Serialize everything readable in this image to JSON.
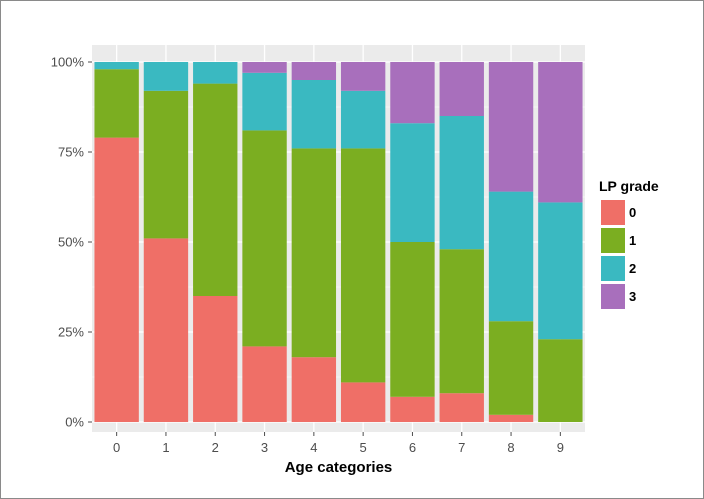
{
  "chart_data": {
    "type": "bar",
    "stacked": "percent",
    "categories": [
      "0",
      "1",
      "2",
      "3",
      "4",
      "5",
      "6",
      "7",
      "8",
      "9"
    ],
    "series": [
      {
        "name": "0",
        "color": "#EF6F67",
        "values": [
          79,
          51,
          35,
          21,
          18,
          11,
          7,
          8,
          2,
          0
        ]
      },
      {
        "name": "1",
        "color": "#7BAE21",
        "values": [
          19,
          41,
          59,
          60,
          58,
          65,
          43,
          40,
          26,
          23
        ]
      },
      {
        "name": "2",
        "color": "#3AB9C1",
        "values": [
          2,
          8,
          6,
          16,
          19,
          16,
          33,
          37,
          36,
          38
        ]
      },
      {
        "name": "3",
        "color": "#A86FBC",
        "values": [
          0,
          0,
          0,
          3,
          5,
          8,
          17,
          15,
          36,
          39
        ]
      }
    ],
    "xlabel": "Age categories",
    "ylabel": "",
    "ylim": [
      0,
      100
    ],
    "y_ticks": [
      "0%",
      "25%",
      "50%",
      "75%",
      "100%"
    ],
    "legend_title": "LP grade",
    "legend_position": "right",
    "grid": true,
    "panel_background": "#EBEBEB",
    "grid_color": "#FFFFFF"
  }
}
